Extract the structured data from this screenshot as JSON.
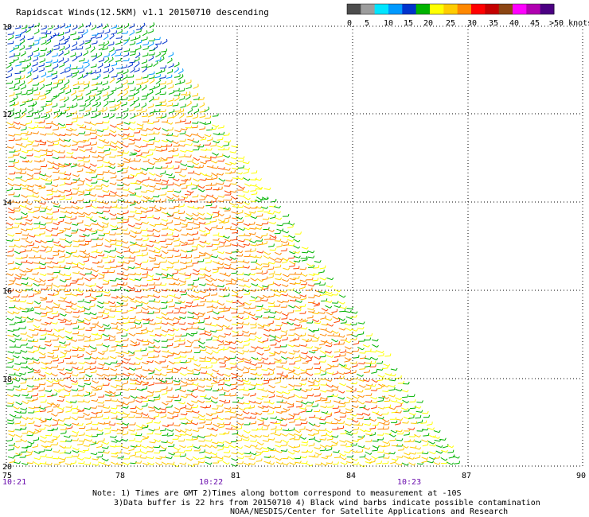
{
  "header": {
    "title": "Rapidscat Winds(12.5KM) v1.1 20150710 descending"
  },
  "legend": {
    "colors": [
      "#4d4d4d",
      "#9d9d9d",
      "#00e5ff",
      "#0099ff",
      "#0033cc",
      "#00b300",
      "#ffff00",
      "#ffcc00",
      "#ff8800",
      "#ff0000",
      "#c40000",
      "#8b4513",
      "#ff00ff",
      "#b000b0",
      "#4b0082"
    ],
    "ticks": [
      "0",
      "5",
      "10",
      "15",
      "20",
      "25",
      "30",
      "35",
      "40",
      "45",
      ">50 knots"
    ]
  },
  "map": {
    "x_ticks": [
      "75",
      "78",
      "81",
      "84",
      "87",
      "90"
    ],
    "y_ticks": [
      "10",
      "12",
      "14",
      "16",
      "18",
      "20"
    ],
    "times": [
      "10:21",
      "10:22",
      "10:23"
    ]
  },
  "notes": [
    "Note: 1) Times are GMT 2)Times along bottom correspond to measurement at -10S",
    "3)Data buffer is 22 hrs from 20150710 4) Black wind barbs indicate possible contamination",
    "NOAA/NESDIS/Center for Satellite Applications and Research"
  ]
}
